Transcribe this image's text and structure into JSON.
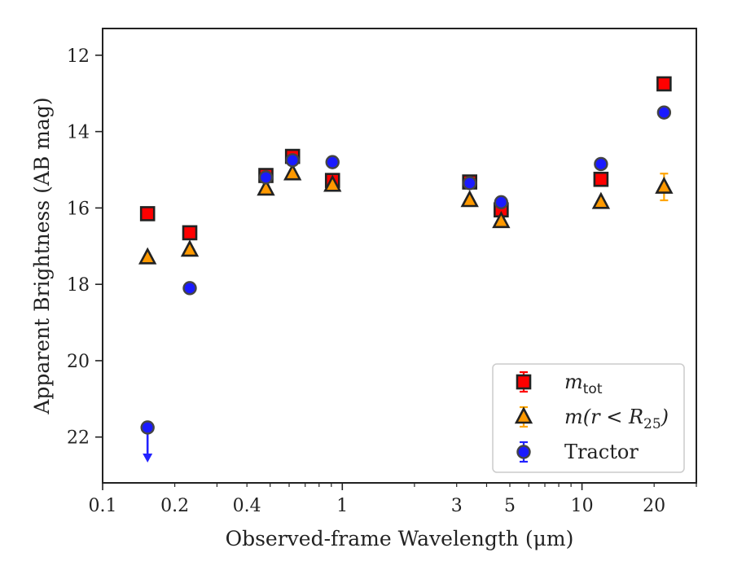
{
  "chart_data": {
    "type": "scatter",
    "xlabel": "Observed-frame Wavelength (μm)",
    "ylabel": "Apparent Brightness (AB mag)",
    "xscale": "log",
    "xlim": [
      0.1,
      30
    ],
    "ylim": [
      23.2,
      11.3
    ],
    "y_inverted": true,
    "xticks": [
      0.1,
      0.2,
      0.4,
      1,
      3,
      5,
      10,
      20
    ],
    "xtick_labels": [
      "0.1",
      "0.2",
      "0.4",
      "1",
      "3",
      "5",
      "10",
      "20"
    ],
    "yticks": [
      12,
      14,
      16,
      18,
      20,
      22
    ],
    "ytick_labels": [
      "12",
      "14",
      "16",
      "18",
      "20",
      "22"
    ],
    "legend_position": "lower-right",
    "series": [
      {
        "key": "mtot",
        "name_base": "m",
        "name_sub": "tot",
        "marker": "square",
        "color": "#ff0000",
        "edgecolor": "#222222",
        "errcolor": "#ff0000",
        "points": [
          {
            "x": 0.154,
            "y": 16.15
          },
          {
            "x": 0.231,
            "y": 16.65
          },
          {
            "x": 0.48,
            "y": 15.15
          },
          {
            "x": 0.62,
            "y": 14.65
          },
          {
            "x": 0.91,
            "y": 15.28
          },
          {
            "x": 3.4,
            "y": 15.32
          },
          {
            "x": 4.6,
            "y": 16.05
          },
          {
            "x": 12.0,
            "y": 15.25
          },
          {
            "x": 22.0,
            "y": 12.75
          }
        ]
      },
      {
        "key": "mR25",
        "name_base": "m(r < R",
        "name_sub": "25",
        "name_tail": ")",
        "marker": "triangle",
        "color": "#ff9900",
        "edgecolor": "#222222",
        "errcolor": "#ffa500",
        "points": [
          {
            "x": 0.154,
            "y": 17.3
          },
          {
            "x": 0.231,
            "y": 17.1
          },
          {
            "x": 0.48,
            "y": 15.5
          },
          {
            "x": 0.62,
            "y": 15.1
          },
          {
            "x": 0.91,
            "y": 15.4
          },
          {
            "x": 3.4,
            "y": 15.8
          },
          {
            "x": 4.6,
            "y": 16.35
          },
          {
            "x": 12.0,
            "y": 15.85
          },
          {
            "x": 22.0,
            "y": 15.45,
            "err": 0.35
          }
        ]
      },
      {
        "key": "tractor",
        "name": "Tractor",
        "marker": "circle",
        "color": "#1a1aff",
        "edgecolor": "#444444",
        "errcolor": "#2222ff",
        "points": [
          {
            "x": 0.154,
            "y": 21.75,
            "upper_limit": true
          },
          {
            "x": 0.231,
            "y": 18.1
          },
          {
            "x": 0.48,
            "y": 15.2
          },
          {
            "x": 0.62,
            "y": 14.75
          },
          {
            "x": 0.91,
            "y": 14.8
          },
          {
            "x": 3.4,
            "y": 15.35
          },
          {
            "x": 4.6,
            "y": 15.85
          },
          {
            "x": 12.0,
            "y": 14.85
          },
          {
            "x": 22.0,
            "y": 13.5
          }
        ]
      }
    ]
  }
}
